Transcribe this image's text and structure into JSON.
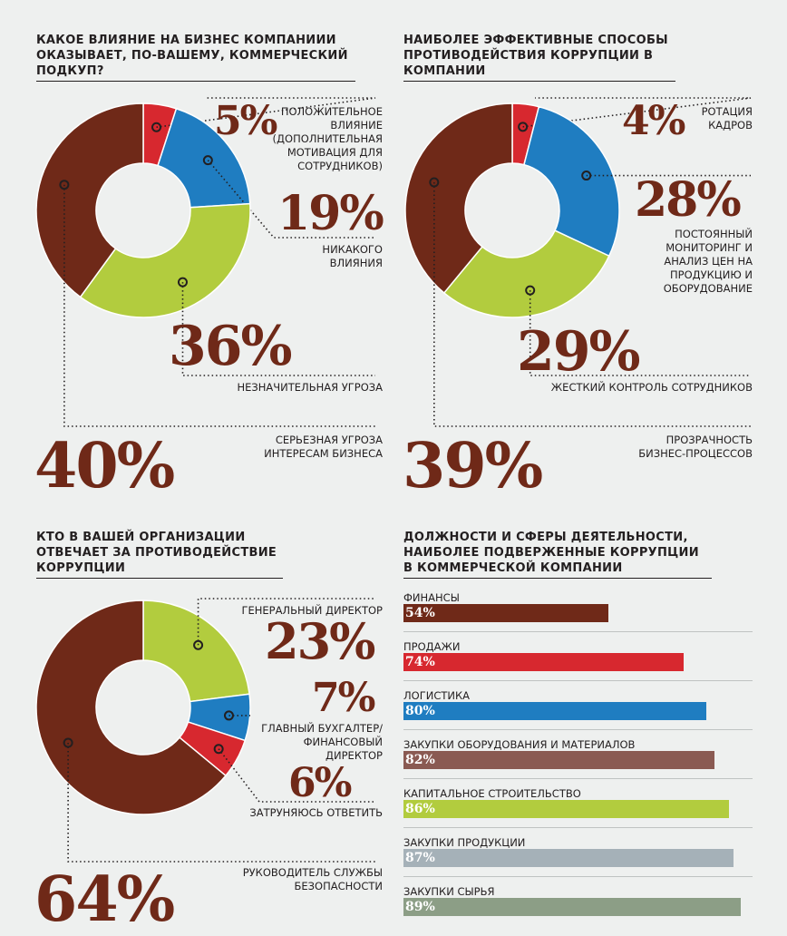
{
  "chart_data": [
    {
      "type": "pie",
      "title": "Какое влияние на бизнес компаниии оказывает, по-вашему, коммерческий подкуп?",
      "slices": [
        {
          "label": "Положительное влияние (дополнительная мотивация для сотрудников)",
          "value": 5,
          "value_label": "5%",
          "color": "#d7282f"
        },
        {
          "label": "Никакого влияния",
          "value": 19,
          "value_label": "19%",
          "color": "#1f7dc1"
        },
        {
          "label": "Незначительная угроза",
          "value": 36,
          "value_label": "36%",
          "color": "#b2cc3e"
        },
        {
          "label": "Серьезная угроза интересам бизнеса",
          "value": 40,
          "value_label": "40%",
          "color": "#6f2918"
        }
      ]
    },
    {
      "type": "pie",
      "title": "Наиболее эффективные способы противодействия коррупции в компании",
      "slices": [
        {
          "label": "Ротация кадров",
          "value": 4,
          "value_label": "4%",
          "color": "#d7282f"
        },
        {
          "label": "Постоянный мониторинг и анализ цен на продукцию и оборудование",
          "value": 28,
          "value_label": "28%",
          "color": "#1f7dc1"
        },
        {
          "label": "Жесткий контроль сотрудников",
          "value": 29,
          "value_label": "29%",
          "color": "#b2cc3e"
        },
        {
          "label": "Прозрачность бизнес-процессов",
          "value": 39,
          "value_label": "39%",
          "color": "#6f2918"
        }
      ]
    },
    {
      "type": "pie",
      "title": "Кто в вашей организации отвечает за противодействие коррупции",
      "slices": [
        {
          "label": "Генеральный директор",
          "value": 23,
          "value_label": "23%",
          "color": "#b2cc3e"
        },
        {
          "label": "Главный бухгалтер/ финансовый директор",
          "value": 7,
          "value_label": "7%",
          "color": "#1f7dc1"
        },
        {
          "label": "Затруняюсь ответить",
          "value": 6,
          "value_label": "6%",
          "color": "#d7282f"
        },
        {
          "label": "Руководитель службы безопасности",
          "value": 64,
          "value_label": "64%",
          "color": "#6f2918"
        }
      ]
    },
    {
      "type": "bar",
      "orientation": "horizontal",
      "title": "Должности и сферы деятельности, наиболее подверженные коррупции в коммерческой компании",
      "categories": [
        "Финансы",
        "Продажи",
        "Логистика",
        "Закупки оборудования и материалов",
        "Капитальное строительство",
        "Закупки  продукции",
        "Закупки сырья"
      ],
      "values": [
        54,
        74,
        80,
        82,
        86,
        87,
        89
      ],
      "value_labels": [
        "54%",
        "74%",
        "80%",
        "82%",
        "86%",
        "87%",
        "89%"
      ],
      "colors": [
        "#6f2918",
        "#d7282f",
        "#1f7dc1",
        "#8a5a52",
        "#b2cc3e",
        "#a5b1b8",
        "#8c9e86"
      ]
    }
  ]
}
